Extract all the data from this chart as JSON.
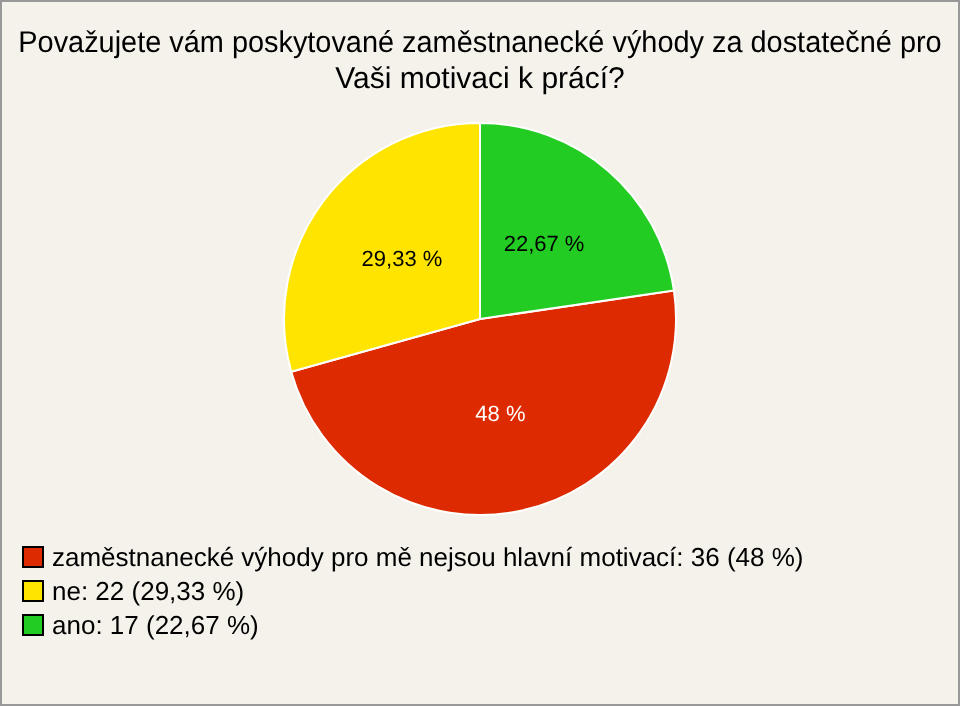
{
  "chart_data": {
    "type": "pie",
    "title": "Považujete vám poskytované zaměstnanecké výhody za dostatečné pro Vaši motivaci k prácí?",
    "categories": [
      "zaměstnanecké výhody pro mě nejsou hlavní motivací: 36 (48 %)",
      "ne: 22 (29,33 %)",
      "ano: 17 (22,67 %)"
    ],
    "values": [
      48,
      29.33,
      22.67
    ],
    "value_labels": [
      "48 %",
      "29,33 %",
      "22,67 %"
    ],
    "colors": [
      "#dd2a00",
      "#ffe400",
      "#22cc22"
    ],
    "legend": "bottom left"
  }
}
